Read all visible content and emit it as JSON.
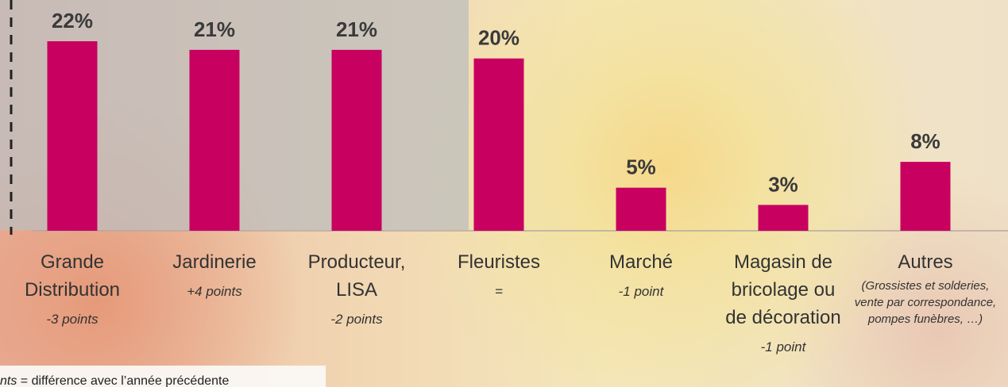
{
  "chart_data": {
    "type": "bar",
    "categories": [
      "Grande Distribution",
      "Jardinerie",
      "Producteur, LISA",
      "Fleuristes",
      "Marché",
      "Magasin de bricolage ou de décoration",
      "Autres"
    ],
    "values": [
      22,
      21,
      21,
      20,
      5,
      3,
      8
    ],
    "value_labels": [
      "22%",
      "21%",
      "21%",
      "20%",
      "5%",
      "3%",
      "8%"
    ],
    "notes": [
      "-3 points",
      "+4 points",
      "-2 points",
      "=",
      "-1 point",
      "-1 point",
      "(Grossistes et solderies, vente par correspondance, pompes funèbres, …)"
    ],
    "color": "#c8005f",
    "ylim": [
      0,
      22
    ],
    "footnote_key": "nts",
    "footnote_text": " = différence avec l’année précédente"
  }
}
